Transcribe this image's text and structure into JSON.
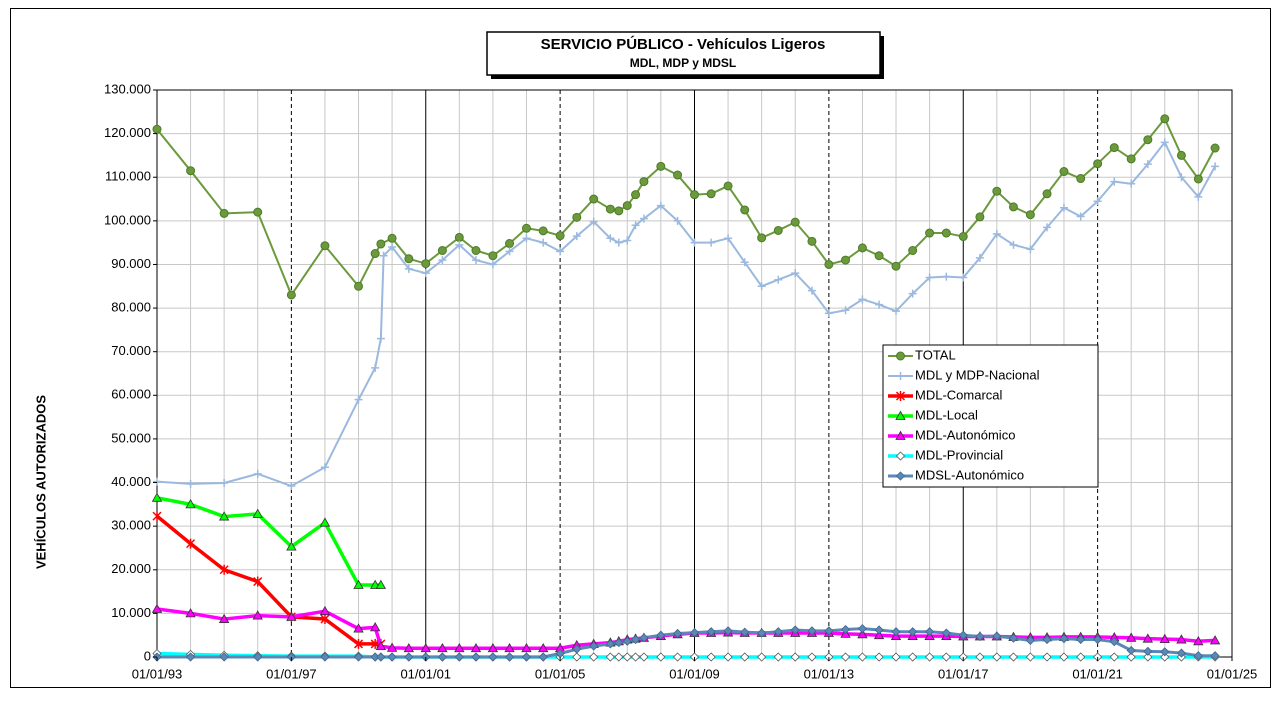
{
  "chart_data": {
    "type": "line",
    "title": "SERVICIO PÚBLICO - Vehículos Ligeros",
    "subtitle": "MDL, MDP y MDSL",
    "y_label": "VEHÍCULOS AUTORIZADOS",
    "xlim": [
      "1993-01-01",
      "2025-01-01"
    ],
    "xticks": [
      {
        "value": "1993-01-01",
        "label": "01/01/93"
      },
      {
        "value": "1997-01-01",
        "label": "01/01/97"
      },
      {
        "value": "2001-01-01",
        "label": "01/01/01"
      },
      {
        "value": "2005-01-01",
        "label": "01/01/05"
      },
      {
        "value": "2009-01-01",
        "label": "01/01/09"
      },
      {
        "value": "2013-01-01",
        "label": "01/01/13"
      },
      {
        "value": "2017-01-01",
        "label": "01/01/17"
      },
      {
        "value": "2021-01-01",
        "label": "01/01/21"
      },
      {
        "value": "2025-01-01",
        "label": "01/01/25"
      }
    ],
    "ylim": [
      0,
      130000
    ],
    "yticks": [
      0,
      {
        "value": 10000,
        "label": "10.000"
      },
      {
        "value": 20000,
        "label": "20.000"
      },
      {
        "value": 30000,
        "label": "30.000"
      },
      {
        "value": 40000,
        "label": "40.000"
      },
      {
        "value": 50000,
        "label": "50.000"
      },
      {
        "value": 60000,
        "label": "60.000"
      },
      {
        "value": 70000,
        "label": "70.000"
      },
      {
        "value": 80000,
        "label": "80.000"
      },
      {
        "value": 90000,
        "label": "90.000"
      },
      {
        "value": 100000,
        "label": "100.000"
      },
      {
        "value": 110000,
        "label": "110.000"
      },
      {
        "value": 120000,
        "label": "120.000"
      },
      {
        "value": 130000,
        "label": "130.000"
      }
    ],
    "grid": true,
    "legend": "right",
    "series": [
      {
        "name": "TOTAL",
        "color": "#6b9a3c",
        "marker": "circle",
        "line_width": 2,
        "x": [
          "1993-01-01",
          "1994-01-01",
          "1995-01-01",
          "1996-01-01",
          "1997-01-01",
          "1998-01-01",
          "1999-01-01",
          "1999-07-01",
          "1999-09-01",
          "2000-01-01",
          "2000-07-01",
          "2001-01-01",
          "2001-07-01",
          "2002-01-01",
          "2002-07-01",
          "2003-01-01",
          "2003-07-01",
          "2004-01-01",
          "2004-07-01",
          "2005-01-01",
          "2005-07-01",
          "2006-01-01",
          "2006-07-01",
          "2006-10-01",
          "2007-01-01",
          "2007-04-01",
          "2007-07-01",
          "2008-01-01",
          "2008-07-01",
          "2009-01-01",
          "2009-07-01",
          "2010-01-01",
          "2010-07-01",
          "2011-01-01",
          "2011-07-01",
          "2012-01-01",
          "2012-07-01",
          "2013-01-01",
          "2013-07-01",
          "2014-01-01",
          "2014-07-01",
          "2015-01-01",
          "2015-07-01",
          "2016-01-01",
          "2016-07-01",
          "2017-01-01",
          "2017-07-01",
          "2018-01-01",
          "2018-07-01",
          "2019-01-01",
          "2019-07-01",
          "2020-01-01",
          "2020-07-01",
          "2021-01-01",
          "2021-07-01",
          "2022-01-01",
          "2022-07-01",
          "2023-01-01",
          "2023-07-01",
          "2024-01-01",
          "2024-07-01"
        ],
        "values": [
          121000,
          111500,
          101700,
          102000,
          83000,
          94300,
          85000,
          92500,
          94700,
          96000,
          91300,
          90200,
          93200,
          96200,
          93200,
          92000,
          94800,
          98300,
          97700,
          96600,
          100800,
          105000,
          102700,
          102300,
          103500,
          106000,
          109000,
          112500,
          110500,
          106000,
          106200,
          108000,
          102500,
          96100,
          97800,
          99700,
          95300,
          90000,
          91000,
          93800,
          92000,
          89600,
          93200,
          97200,
          97200,
          96400,
          100900,
          106800,
          103200,
          101400,
          106200,
          111300,
          109700,
          113100,
          116800,
          114200,
          118600,
          123400,
          115000,
          109600,
          116700
        ]
      },
      {
        "name": "MDL y MDP-Nacional",
        "color": "#9bb9de",
        "marker": "plus",
        "line_width": 2,
        "x": [
          "1993-01-01",
          "1994-01-01",
          "1995-01-01",
          "1996-01-01",
          "1997-01-01",
          "1998-01-01",
          "1999-01-01",
          "1999-07-01",
          "1999-09-01",
          "1999-10-01",
          "2000-01-01",
          "2000-07-01",
          "2001-01-01",
          "2001-07-01",
          "2002-01-01",
          "2002-07-01",
          "2003-01-01",
          "2003-07-01",
          "2004-01-01",
          "2004-07-01",
          "2005-01-01",
          "2005-07-01",
          "2006-01-01",
          "2006-07-01",
          "2006-10-01",
          "2007-01-01",
          "2007-04-01",
          "2007-07-01",
          "2008-01-01",
          "2008-07-01",
          "2009-01-01",
          "2009-07-01",
          "2010-01-01",
          "2010-07-01",
          "2011-01-01",
          "2011-07-01",
          "2012-01-01",
          "2012-07-01",
          "2013-01-01",
          "2013-07-01",
          "2014-01-01",
          "2014-07-01",
          "2015-01-01",
          "2015-07-01",
          "2016-01-01",
          "2016-07-01",
          "2017-01-01",
          "2017-07-01",
          "2018-01-01",
          "2018-07-01",
          "2019-01-01",
          "2019-07-01",
          "2020-01-01",
          "2020-07-01",
          "2021-01-01",
          "2021-07-01",
          "2022-01-01",
          "2022-07-01",
          "2023-01-01",
          "2023-07-01",
          "2024-01-01",
          "2024-07-01"
        ],
        "values": [
          40200,
          39700,
          39900,
          42000,
          39200,
          43500,
          59000,
          66300,
          73000,
          92000,
          94000,
          89000,
          88000,
          91000,
          94500,
          91000,
          90000,
          93000,
          96000,
          95000,
          93000,
          96500,
          99800,
          96000,
          95000,
          95500,
          99000,
          100500,
          103500,
          100000,
          95000,
          95000,
          96000,
          90500,
          85000,
          86500,
          88000,
          84000,
          78800,
          79500,
          82000,
          80800,
          79300,
          83300,
          87000,
          87200,
          87000,
          91500,
          97000,
          94500,
          93500,
          98500,
          103000,
          101000,
          104500,
          109000,
          108500,
          113000,
          118000,
          110000,
          105500,
          112500
        ]
      },
      {
        "name": "MDL-Comarcal",
        "color": "#ff0000",
        "marker": "x",
        "line_width": 3.5,
        "x": [
          "1993-01-01",
          "1994-01-01",
          "1995-01-01",
          "1996-01-01",
          "1997-01-01",
          "1998-01-01",
          "1999-01-01",
          "1999-07-01",
          "1999-09-01"
        ],
        "values": [
          32300,
          26000,
          20000,
          17300,
          9200,
          8700,
          3000,
          3000,
          3000
        ]
      },
      {
        "name": "MDL-Local",
        "color": "#00ff00",
        "marker": "triangle",
        "line_width": 3.5,
        "x": [
          "1993-01-01",
          "1994-01-01",
          "1995-01-01",
          "1996-01-01",
          "1997-01-01",
          "1998-01-01",
          "1999-01-01",
          "1999-07-01",
          "1999-09-01"
        ],
        "values": [
          36500,
          35000,
          32200,
          32800,
          25300,
          30800,
          16500,
          16500,
          16500
        ]
      },
      {
        "name": "MDL-Autonómico",
        "color": "#ff00ff",
        "marker": "triangle",
        "line_width": 3.5,
        "x": [
          "1993-01-01",
          "1994-01-01",
          "1995-01-01",
          "1996-01-01",
          "1997-01-01",
          "1998-01-01",
          "1999-01-01",
          "1999-07-01",
          "1999-09-01",
          "2000-01-01",
          "2000-07-01",
          "2001-01-01",
          "2001-07-01",
          "2002-01-01",
          "2002-07-01",
          "2003-01-01",
          "2003-07-01",
          "2004-01-01",
          "2004-07-01",
          "2005-01-01",
          "2005-07-01",
          "2006-01-01",
          "2006-07-01",
          "2006-10-01",
          "2007-01-01",
          "2007-04-01",
          "2007-07-01",
          "2008-01-01",
          "2008-07-01",
          "2009-01-01",
          "2009-07-01",
          "2010-01-01",
          "2010-07-01",
          "2011-01-01",
          "2011-07-01",
          "2012-01-01",
          "2012-07-01",
          "2013-01-01",
          "2013-07-01",
          "2014-01-01",
          "2014-07-01",
          "2015-01-01",
          "2015-07-01",
          "2016-01-01",
          "2016-07-01",
          "2017-01-01",
          "2017-07-01",
          "2018-01-01",
          "2018-07-01",
          "2019-01-01",
          "2019-07-01",
          "2020-01-01",
          "2020-07-01",
          "2021-01-01",
          "2021-07-01",
          "2022-01-01",
          "2022-07-01",
          "2023-01-01",
          "2023-07-01",
          "2024-01-01",
          "2024-07-01"
        ],
        "values": [
          11000,
          10000,
          8700,
          9500,
          9200,
          10500,
          6500,
          6800,
          2500,
          2100,
          2000,
          2000,
          2000,
          2000,
          2000,
          2000,
          2000,
          2000,
          2000,
          2000,
          2700,
          3000,
          3300,
          3600,
          4000,
          4200,
          4400,
          4800,
          5200,
          5500,
          5500,
          5600,
          5500,
          5500,
          5500,
          5500,
          5500,
          5500,
          5300,
          5200,
          5000,
          4800,
          4800,
          4800,
          4800,
          4700,
          4700,
          4700,
          4600,
          4500,
          4500,
          4600,
          4600,
          4600,
          4500,
          4400,
          4200,
          4100,
          4000,
          3600,
          3800
        ]
      },
      {
        "name": "MDL-Provincial",
        "color": "#00ffff",
        "marker": "diamond",
        "marker_fill": "#ffffff",
        "line_width": 3.5,
        "x": [
          "1993-01-01",
          "1994-01-01",
          "1995-01-01",
          "1996-01-01",
          "1997-01-01",
          "1998-01-01",
          "1999-01-01",
          "1999-07-01",
          "1999-09-01",
          "2000-01-01",
          "2000-07-01",
          "2001-01-01",
          "2001-07-01",
          "2002-01-01",
          "2002-07-01",
          "2003-01-01",
          "2003-07-01",
          "2004-01-01",
          "2004-07-01",
          "2005-01-01",
          "2005-07-01",
          "2006-01-01",
          "2006-07-01",
          "2006-10-01",
          "2007-01-01",
          "2007-04-01",
          "2007-07-01",
          "2008-01-01",
          "2008-07-01",
          "2009-01-01",
          "2009-07-01",
          "2010-01-01",
          "2010-07-01",
          "2011-01-01",
          "2011-07-01",
          "2012-01-01",
          "2012-07-01",
          "2013-01-01",
          "2013-07-01",
          "2014-01-01",
          "2014-07-01",
          "2015-01-01",
          "2015-07-01",
          "2016-01-01",
          "2016-07-01",
          "2017-01-01",
          "2017-07-01",
          "2018-01-01",
          "2018-07-01",
          "2019-01-01",
          "2019-07-01",
          "2020-01-01",
          "2020-07-01",
          "2021-01-01",
          "2021-07-01",
          "2022-01-01",
          "2022-07-01",
          "2023-01-01",
          "2023-07-01",
          "2024-01-01",
          "2024-07-01"
        ],
        "values": [
          800,
          600,
          400,
          300,
          200,
          200,
          200,
          0,
          0,
          0,
          0,
          0,
          0,
          0,
          0,
          0,
          0,
          0,
          0,
          0,
          0,
          0,
          0,
          0,
          0,
          0,
          0,
          0,
          0,
          0,
          0,
          0,
          0,
          0,
          0,
          0,
          0,
          0,
          0,
          0,
          0,
          0,
          0,
          0,
          0,
          0,
          0,
          0,
          0,
          0,
          0,
          0,
          0,
          0,
          0,
          0,
          0,
          0,
          0,
          0,
          0
        ]
      },
      {
        "name": "MDSL-Autonómico",
        "color": "#5b88b5",
        "marker": "diamond",
        "line_width": 3,
        "x": [
          "1993-01-01",
          "1994-01-01",
          "1995-01-01",
          "1996-01-01",
          "1997-01-01",
          "1998-01-01",
          "1999-01-01",
          "1999-07-01",
          "1999-09-01",
          "2000-01-01",
          "2000-07-01",
          "2001-01-01",
          "2001-07-01",
          "2002-01-01",
          "2002-07-01",
          "2003-01-01",
          "2003-07-01",
          "2004-01-01",
          "2004-07-01",
          "2005-01-01",
          "2005-07-01",
          "2006-01-01",
          "2006-07-01",
          "2006-10-01",
          "2007-01-01",
          "2007-04-01",
          "2007-07-01",
          "2008-01-01",
          "2008-07-01",
          "2009-01-01",
          "2009-07-01",
          "2010-01-01",
          "2010-07-01",
          "2011-01-01",
          "2011-07-01",
          "2012-01-01",
          "2012-07-01",
          "2013-01-01",
          "2013-07-01",
          "2014-01-01",
          "2014-07-01",
          "2015-01-01",
          "2015-07-01",
          "2016-01-01",
          "2016-07-01",
          "2017-01-01",
          "2017-07-01",
          "2018-01-01",
          "2018-07-01",
          "2019-01-01",
          "2019-07-01",
          "2020-01-01",
          "2020-07-01",
          "2021-01-01",
          "2021-07-01",
          "2022-01-01",
          "2022-07-01",
          "2023-01-01",
          "2023-07-01",
          "2024-01-01",
          "2024-07-01"
        ],
        "values": [
          0,
          0,
          0,
          0,
          0,
          0,
          0,
          0,
          0,
          0,
          0,
          0,
          0,
          0,
          0,
          0,
          0,
          0,
          0,
          800,
          1800,
          2500,
          3000,
          3300,
          3600,
          4000,
          4400,
          5000,
          5400,
          5600,
          5800,
          6000,
          5700,
          5500,
          5800,
          6200,
          6000,
          6000,
          6300,
          6500,
          6200,
          5800,
          5800,
          5800,
          5500,
          5000,
          4700,
          4800,
          4300,
          3800,
          4000,
          4200,
          4000,
          4000,
          3500,
          1500,
          1300,
          1200,
          900,
          300,
          300
        ]
      }
    ]
  }
}
